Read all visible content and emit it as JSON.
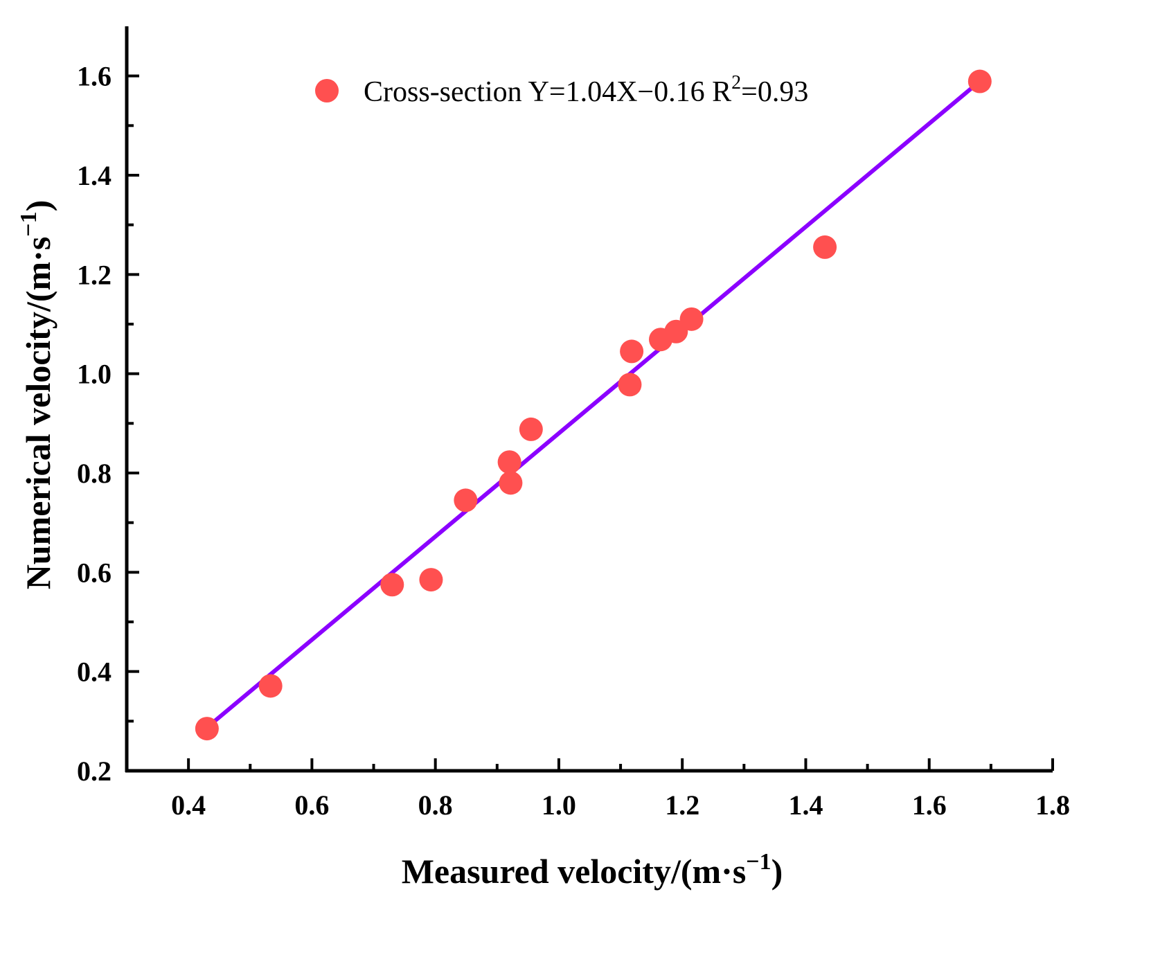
{
  "chart_data": {
    "type": "scatter",
    "title": "",
    "xlabel": "Measured velocity/(m·s",
    "xlabel_sup": "−1",
    "xlabel_end": ")",
    "ylabel": "Numerical velocity/(m·s",
    "ylabel_sup": "−1",
    "ylabel_end": ")",
    "xlim": [
      0.3,
      1.8
    ],
    "ylim": [
      0.2,
      1.7
    ],
    "xticks": [
      "0.4",
      "0.6",
      "0.8",
      "1.0",
      "1.2",
      "1.4",
      "1.6",
      "1.8"
    ],
    "yticks": [
      "0.2",
      "0.4",
      "0.6",
      "0.8",
      "1.0",
      "1.2",
      "1.4",
      "1.6"
    ],
    "grid": false,
    "legend_position": "top",
    "series": [
      {
        "name": "Cross-section",
        "color": "#FF5050",
        "x": [
          0.43,
          0.533,
          0.73,
          0.793,
          0.849,
          0.92,
          0.922,
          0.955,
          1.115,
          1.118,
          1.165,
          1.19,
          1.215,
          1.431,
          1.682
        ],
        "y": [
          0.285,
          0.371,
          0.575,
          0.585,
          0.745,
          0.822,
          0.78,
          0.888,
          0.978,
          1.045,
          1.069,
          1.085,
          1.11,
          1.255,
          1.589
        ]
      }
    ],
    "fit": {
      "slope": 1.04,
      "intercept": -0.16,
      "x_range": [
        0.43,
        1.68
      ],
      "color": "#8B00FF",
      "label_prefix": "Cross-section Y=1.04X−0.16 R",
      "label_sup": "2",
      "label_suffix": "=0.93"
    }
  }
}
